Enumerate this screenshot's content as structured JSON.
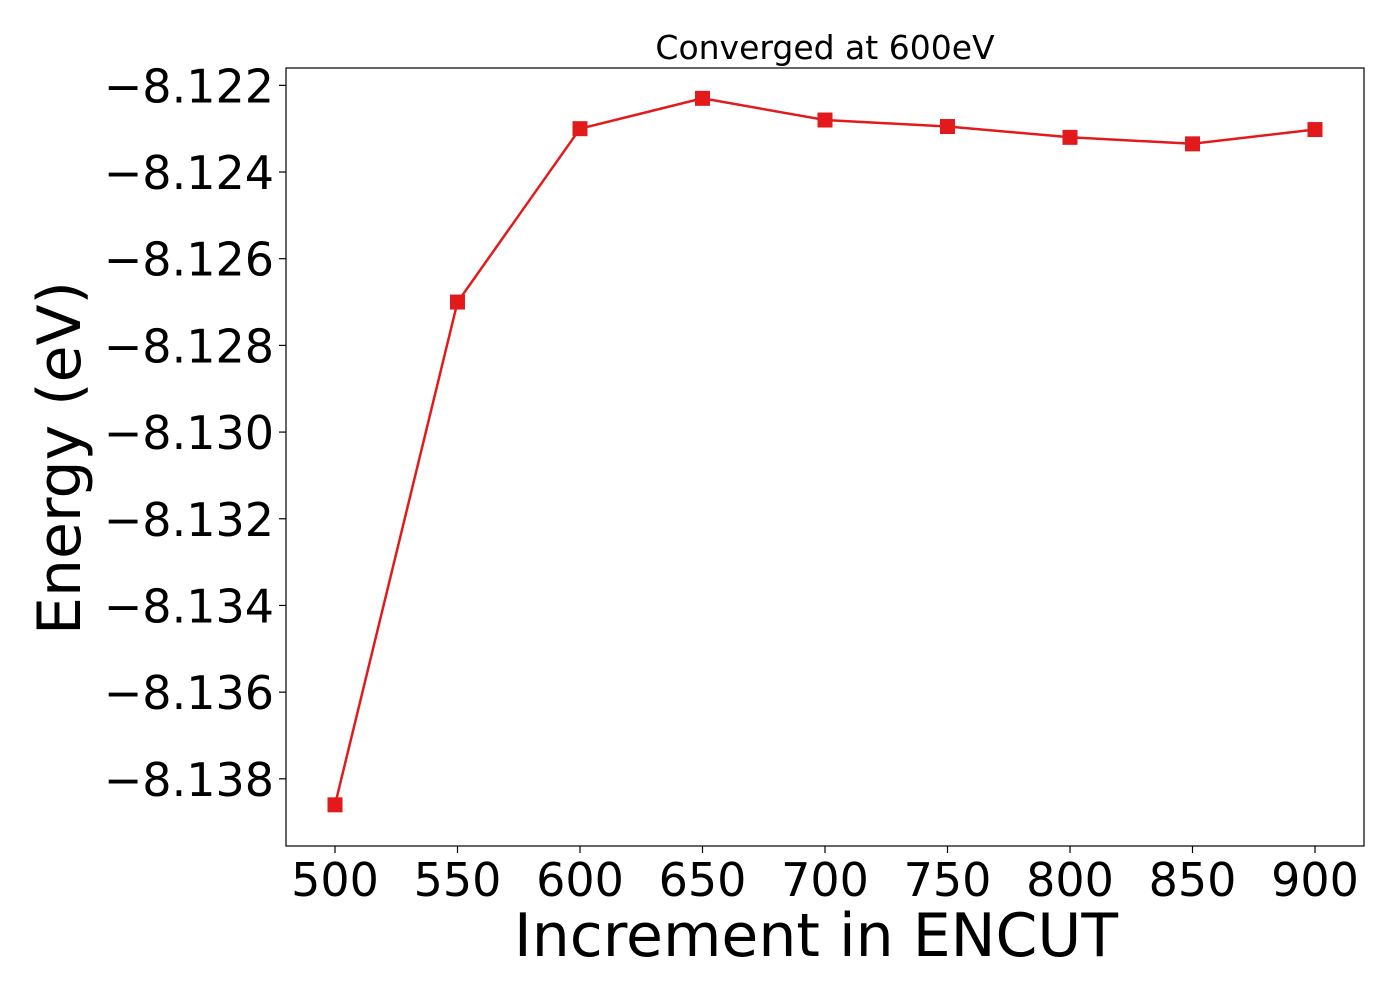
{
  "colors": {
    "series": "#e31a1c",
    "axis": "#000000",
    "background": "#ffffff"
  },
  "chart_data": {
    "type": "line",
    "title": "Converged at 600eV",
    "xlabel": "Increment in ENCUT",
    "ylabel": "Energy (eV)",
    "x": [
      500,
      550,
      600,
      650,
      700,
      750,
      800,
      850,
      900
    ],
    "series": [
      {
        "values": [
          -8.1386,
          -8.127,
          -8.123,
          -8.1223,
          -8.1228,
          -8.12295,
          -8.1232,
          -8.12335,
          -8.12302
        ],
        "marker": "square",
        "color": "#e31a1c"
      }
    ],
    "xlim": [
      480,
      920
    ],
    "ylim": [
      -8.13955,
      -8.1216
    ],
    "xticks": [
      500,
      550,
      600,
      650,
      700,
      750,
      800,
      850,
      900
    ],
    "xtick_labels": [
      "500",
      "550",
      "600",
      "650",
      "700",
      "750",
      "800",
      "850",
      "900"
    ],
    "yticks": [
      -8.138,
      -8.136,
      -8.134,
      -8.132,
      -8.13,
      -8.128,
      -8.126,
      -8.124,
      -8.122
    ],
    "ytick_labels": [
      "−8.138",
      "−8.136",
      "−8.134",
      "−8.132",
      "−8.130",
      "−8.128",
      "−8.126",
      "−8.124",
      "−8.122"
    ],
    "grid": false,
    "legend": false
  }
}
